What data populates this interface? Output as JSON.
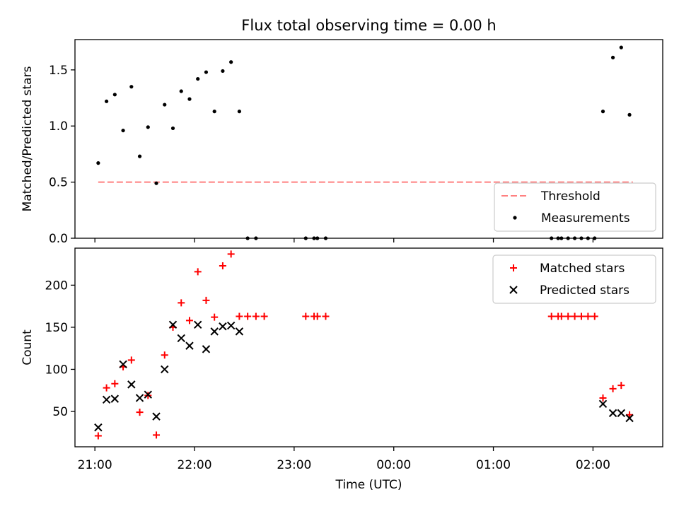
{
  "chart_data": [
    {
      "type": "scatter",
      "title": "Flux total observing time = 0.00 h",
      "xlabel": "",
      "ylabel": "Matched/Predicted stars",
      "xlim": [
        "20:48",
        "02:42"
      ],
      "ylim": [
        0,
        1.77
      ],
      "yticks": [
        0.0,
        0.5,
        1.0,
        1.5
      ],
      "ytick_labels": [
        "0.0",
        "0.5",
        "1.0",
        "1.5"
      ],
      "xticks": [
        "21:00",
        "22:00",
        "23:00",
        "00:00",
        "01:00",
        "02:00"
      ],
      "show_xtick_labels": false,
      "legend": {
        "placement": "lower-right",
        "entries": [
          "Threshold",
          "Measurements"
        ]
      },
      "series": [
        {
          "name": "Threshold",
          "kind": "line",
          "style": "dashed",
          "color": "#ff8080",
          "points": [
            [
              "21:02",
              0.5
            ],
            [
              "02:24",
              0.5
            ]
          ]
        },
        {
          "name": "Measurements",
          "kind": "dot",
          "color": "#000000",
          "points": [
            [
              "21:02",
              0.67
            ],
            [
              "21:07",
              1.22
            ],
            [
              "21:12",
              1.28
            ],
            [
              "21:17",
              0.96
            ],
            [
              "21:22",
              1.35
            ],
            [
              "21:27",
              0.73
            ],
            [
              "21:32",
              0.99
            ],
            [
              "21:37",
              0.49
            ],
            [
              "21:42",
              1.19
            ],
            [
              "21:47",
              0.98
            ],
            [
              "21:52",
              1.31
            ],
            [
              "21:57",
              1.24
            ],
            [
              "22:02",
              1.42
            ],
            [
              "22:07",
              1.48
            ],
            [
              "22:12",
              1.13
            ],
            [
              "22:17",
              1.49
            ],
            [
              "22:22",
              1.57
            ],
            [
              "22:27",
              1.13
            ],
            [
              "22:32",
              0.0
            ],
            [
              "22:37",
              0.0
            ],
            [
              "23:07",
              0.0
            ],
            [
              "23:12",
              0.0
            ],
            [
              "23:14",
              0.0
            ],
            [
              "23:19",
              0.0
            ],
            [
              "01:35",
              0.0
            ],
            [
              "01:39",
              0.0
            ],
            [
              "01:41",
              0.0
            ],
            [
              "01:45",
              0.0
            ],
            [
              "01:49",
              0.0
            ],
            [
              "01:53",
              0.0
            ],
            [
              "01:57",
              0.0
            ],
            [
              "02:01",
              0.0
            ],
            [
              "02:06",
              1.13
            ],
            [
              "02:12",
              1.61
            ],
            [
              "02:17",
              1.7
            ],
            [
              "02:22",
              1.1
            ]
          ]
        }
      ]
    },
    {
      "type": "scatter",
      "title": "",
      "xlabel": "Time (UTC)",
      "ylabel": "Count",
      "xlim": [
        "20:48",
        "02:42"
      ],
      "ylim": [
        8,
        244
      ],
      "yticks": [
        50,
        100,
        150,
        200
      ],
      "ytick_labels": [
        "50",
        "100",
        "150",
        "200"
      ],
      "xticks": [
        "21:00",
        "22:00",
        "23:00",
        "00:00",
        "01:00",
        "02:00"
      ],
      "xtick_labels": [
        "21:00",
        "22:00",
        "23:00",
        "00:00",
        "01:00",
        "02:00"
      ],
      "show_xtick_labels": true,
      "legend": {
        "placement": "top-right",
        "entries": [
          "Matched stars",
          "Predicted stars"
        ]
      },
      "series": [
        {
          "name": "Matched stars",
          "kind": "plus",
          "color": "#ff0000",
          "points": [
            [
              "21:02",
              21
            ],
            [
              "21:07",
              78
            ],
            [
              "21:12",
              83
            ],
            [
              "21:17",
              103
            ],
            [
              "21:22",
              111
            ],
            [
              "21:27",
              49
            ],
            [
              "21:32",
              69
            ],
            [
              "21:37",
              22
            ],
            [
              "21:42",
              117
            ],
            [
              "21:47",
              150
            ],
            [
              "21:52",
              179
            ],
            [
              "21:57",
              158
            ],
            [
              "22:02",
              216
            ],
            [
              "22:07",
              182
            ],
            [
              "22:12",
              162
            ],
            [
              "22:17",
              223
            ],
            [
              "22:22",
              237
            ],
            [
              "22:27",
              163
            ],
            [
              "22:32",
              163
            ],
            [
              "22:37",
              163
            ],
            [
              "22:42",
              163
            ],
            [
              "23:07",
              163
            ],
            [
              "23:12",
              163
            ],
            [
              "23:14",
              163
            ],
            [
              "23:19",
              163
            ],
            [
              "01:35",
              163
            ],
            [
              "01:39",
              163
            ],
            [
              "01:41",
              163
            ],
            [
              "01:45",
              163
            ],
            [
              "01:49",
              163
            ],
            [
              "01:53",
              163
            ],
            [
              "01:57",
              163
            ],
            [
              "02:01",
              163
            ],
            [
              "02:06",
              66
            ],
            [
              "02:12",
              77
            ],
            [
              "02:17",
              81
            ],
            [
              "02:22",
              46
            ]
          ]
        },
        {
          "name": "Predicted stars",
          "kind": "x",
          "color": "#000000",
          "points": [
            [
              "21:02",
              31
            ],
            [
              "21:07",
              64
            ],
            [
              "21:12",
              65
            ],
            [
              "21:17",
              106
            ],
            [
              "21:22",
              82
            ],
            [
              "21:27",
              66
            ],
            [
              "21:32",
              70
            ],
            [
              "21:37",
              44
            ],
            [
              "21:42",
              100
            ],
            [
              "21:47",
              153
            ],
            [
              "21:52",
              137
            ],
            [
              "21:57",
              128
            ],
            [
              "22:02",
              153
            ],
            [
              "22:07",
              124
            ],
            [
              "22:12",
              145
            ],
            [
              "22:17",
              151
            ],
            [
              "22:22",
              152
            ],
            [
              "22:27",
              145
            ],
            [
              "02:06",
              59
            ],
            [
              "02:12",
              48
            ],
            [
              "02:17",
              48
            ],
            [
              "02:22",
              42
            ]
          ]
        }
      ]
    }
  ]
}
